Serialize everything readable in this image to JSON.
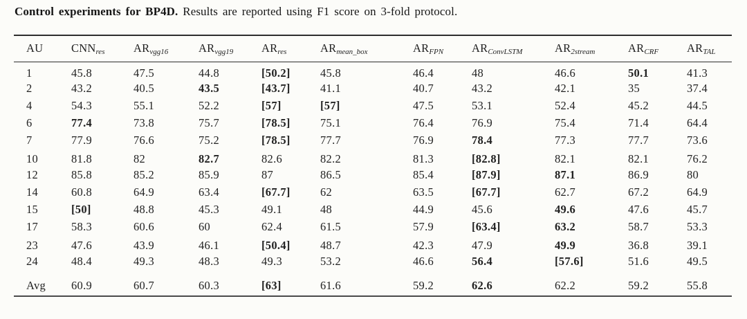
{
  "caption": {
    "bold": "Control experiments for BP4D.",
    "rest": " Results are reported using F1 score on 3-fold protocol."
  },
  "table": {
    "columns": [
      {
        "main": "AU",
        "sub": ""
      },
      {
        "main": "CNN",
        "sub": "res"
      },
      {
        "main": "AR",
        "sub": "vgg16"
      },
      {
        "main": "AR",
        "sub": "vgg19"
      },
      {
        "main": "AR",
        "sub": "res"
      },
      {
        "main": "AR",
        "sub": "mean_box"
      },
      {
        "main": "AR",
        "sub": "FPN"
      },
      {
        "main": "AR",
        "sub": "ConvLSTM"
      },
      {
        "main": "AR",
        "sub": "2stream"
      },
      {
        "main": "AR",
        "sub": "CRF"
      },
      {
        "main": "AR",
        "sub": "TAL"
      }
    ],
    "rows": [
      {
        "au": "1",
        "cells": [
          {
            "t": "45.8"
          },
          {
            "t": "47.5"
          },
          {
            "t": "44.8"
          },
          {
            "t": "[50.2]",
            "b": true
          },
          {
            "t": "45.8"
          },
          {
            "t": "46.4"
          },
          {
            "t": "48"
          },
          {
            "t": "46.6"
          },
          {
            "t": "50.1",
            "b": true
          },
          {
            "t": "41.3"
          }
        ]
      },
      {
        "au": "2",
        "cells": [
          {
            "t": "43.2"
          },
          {
            "t": "40.5"
          },
          {
            "t": "43.5",
            "b": true
          },
          {
            "t": "[43.7]",
            "b": true
          },
          {
            "t": "41.1"
          },
          {
            "t": "40.7"
          },
          {
            "t": "43.2"
          },
          {
            "t": "42.1"
          },
          {
            "t": "35"
          },
          {
            "t": "37.4"
          }
        ]
      },
      {
        "au": "4",
        "cells": [
          {
            "t": "54.3"
          },
          {
            "t": "55.1"
          },
          {
            "t": "52.2"
          },
          {
            "t": "[57]",
            "b": true
          },
          {
            "t": "[57]",
            "b": true
          },
          {
            "t": "47.5"
          },
          {
            "t": "53.1"
          },
          {
            "t": "52.4"
          },
          {
            "t": "45.2"
          },
          {
            "t": "44.5"
          }
        ]
      },
      {
        "au": "6",
        "cells": [
          {
            "t": "77.4",
            "b": true
          },
          {
            "t": "73.8"
          },
          {
            "t": "75.7"
          },
          {
            "t": "[78.5]",
            "b": true
          },
          {
            "t": "75.1"
          },
          {
            "t": "76.4"
          },
          {
            "t": "76.9"
          },
          {
            "t": "75.4"
          },
          {
            "t": "71.4"
          },
          {
            "t": "64.4"
          }
        ]
      },
      {
        "au": "7",
        "cells": [
          {
            "t": "77.9"
          },
          {
            "t": "76.6"
          },
          {
            "t": "75.2"
          },
          {
            "t": "[78.5]",
            "b": true
          },
          {
            "t": "77.7"
          },
          {
            "t": "76.9"
          },
          {
            "t": "78.4",
            "b": true
          },
          {
            "t": "77.3"
          },
          {
            "t": "77.7"
          },
          {
            "t": "73.6"
          }
        ]
      },
      {
        "au": "10",
        "gap_before": true,
        "cells": [
          {
            "t": "81.8"
          },
          {
            "t": "82"
          },
          {
            "t": "82.7",
            "b": true
          },
          {
            "t": "82.6"
          },
          {
            "t": "82.2"
          },
          {
            "t": "81.3"
          },
          {
            "t": "[82.8]",
            "b": true
          },
          {
            "t": "82.1"
          },
          {
            "t": "82.1"
          },
          {
            "t": "76.2"
          }
        ]
      },
      {
        "au": "12",
        "cells": [
          {
            "t": "85.8"
          },
          {
            "t": "85.2"
          },
          {
            "t": "85.9"
          },
          {
            "t": "87"
          },
          {
            "t": "86.5"
          },
          {
            "t": "85.4"
          },
          {
            "t": "[87.9]",
            "b": true
          },
          {
            "t": "87.1",
            "b": true
          },
          {
            "t": "86.9"
          },
          {
            "t": "80"
          }
        ]
      },
      {
        "au": "14",
        "cells": [
          {
            "t": "60.8"
          },
          {
            "t": "64.9"
          },
          {
            "t": "63.4"
          },
          {
            "t": "[67.7]",
            "b": true
          },
          {
            "t": "62"
          },
          {
            "t": "63.5"
          },
          {
            "t": "[67.7]",
            "b": true
          },
          {
            "t": "62.7"
          },
          {
            "t": "67.2"
          },
          {
            "t": "64.9"
          }
        ]
      },
      {
        "au": "15",
        "cells": [
          {
            "t": "[50]",
            "b": true
          },
          {
            "t": "48.8"
          },
          {
            "t": "45.3"
          },
          {
            "t": "49.1"
          },
          {
            "t": "48"
          },
          {
            "t": "44.9"
          },
          {
            "t": "45.6"
          },
          {
            "t": "49.6",
            "b": true
          },
          {
            "t": "47.6"
          },
          {
            "t": "45.7"
          }
        ]
      },
      {
        "au": "17",
        "cells": [
          {
            "t": "58.3"
          },
          {
            "t": "60.6"
          },
          {
            "t": "60"
          },
          {
            "t": "62.4"
          },
          {
            "t": "61.5"
          },
          {
            "t": "57.9"
          },
          {
            "t": "[63.4]",
            "b": true
          },
          {
            "t": "63.2",
            "b": true
          },
          {
            "t": "58.7"
          },
          {
            "t": "53.3"
          }
        ]
      },
      {
        "au": "23",
        "gap_before": true,
        "cells": [
          {
            "t": "47.6"
          },
          {
            "t": "43.9"
          },
          {
            "t": "46.1"
          },
          {
            "t": "[50.4]",
            "b": true
          },
          {
            "t": "48.7"
          },
          {
            "t": "42.3"
          },
          {
            "t": "47.9"
          },
          {
            "t": "49.9",
            "b": true
          },
          {
            "t": "36.8"
          },
          {
            "t": "39.1"
          }
        ]
      },
      {
        "au": "24",
        "cells": [
          {
            "t": "48.4"
          },
          {
            "t": "49.3"
          },
          {
            "t": "48.3"
          },
          {
            "t": "49.3"
          },
          {
            "t": "53.2"
          },
          {
            "t": "46.6"
          },
          {
            "t": "56.4",
            "b": true
          },
          {
            "t": "[57.6]",
            "b": true
          },
          {
            "t": "51.6"
          },
          {
            "t": "49.5"
          }
        ]
      },
      {
        "au": "Avg",
        "gap_before": true,
        "cells": [
          {
            "t": "60.9"
          },
          {
            "t": "60.7"
          },
          {
            "t": "60.3"
          },
          {
            "t": "[63]",
            "b": true
          },
          {
            "t": "61.6"
          },
          {
            "t": "59.2"
          },
          {
            "t": "62.6",
            "b": true
          },
          {
            "t": "62.2"
          },
          {
            "t": "59.2"
          },
          {
            "t": "55.8"
          }
        ]
      }
    ]
  }
}
